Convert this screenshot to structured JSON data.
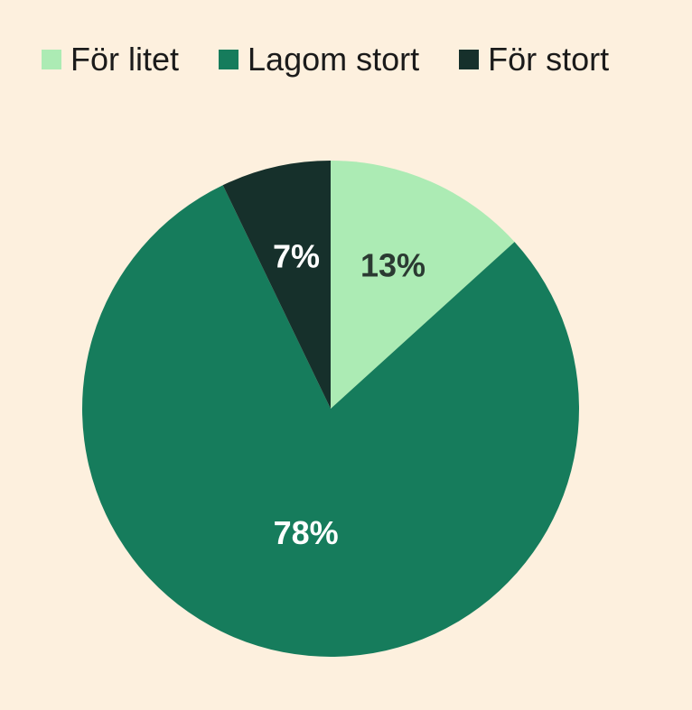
{
  "chart_data": {
    "type": "pie",
    "categories": [
      "För litet",
      "Lagom stort",
      "För stort"
    ],
    "values": [
      13,
      78,
      7
    ],
    "data_labels": [
      "13%",
      "78%",
      "7%"
    ],
    "colors": [
      "#acebb4",
      "#167c5c",
      "#16302b"
    ],
    "label_colors": [
      "#2b3a32",
      "#ffffff",
      "#ffffff"
    ],
    "start_angle_deg": 0,
    "direction": "clockwise",
    "legend_placement": "top"
  }
}
